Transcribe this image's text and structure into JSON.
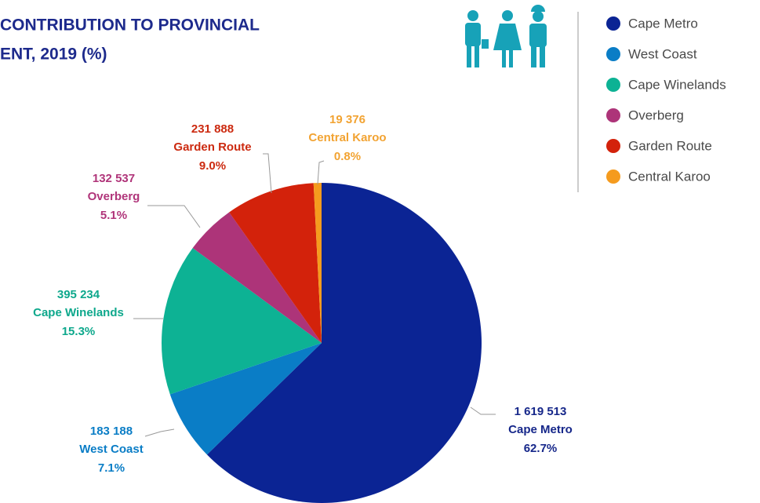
{
  "chart_data": {
    "type": "pie",
    "title_lines": [
      "CONTRIBUTION TO PROVINCIAL",
      "ENT, 2019 (%)"
    ],
    "categories": [
      "Cape Metro",
      "West Coast",
      "Cape Winelands",
      "Overberg",
      "Garden Route",
      "Central Karoo"
    ],
    "values": [
      62.7,
      7.1,
      15.3,
      5.1,
      9.0,
      0.8
    ],
    "value_labels": [
      "62.7%",
      "7.1%",
      "15.3%",
      "5.1%",
      "9.0%",
      "0.8%"
    ],
    "counts": [
      1619513,
      183188,
      395234,
      132537,
      231888,
      19376
    ],
    "count_labels": [
      "1 619 513",
      "183 188",
      "395 234",
      "132 537",
      "231 888",
      "19 376"
    ],
    "colors": [
      "#0b2494",
      "#0a7dc6",
      "#0db294",
      "#ad3479",
      "#d3220b",
      "#f59b1e"
    ],
    "label_colors": [
      "#16278a",
      "#0a7dc6",
      "#0ea88c",
      "#b0357a",
      "#cc2a10",
      "#f2a332"
    ],
    "legend": "right"
  }
}
